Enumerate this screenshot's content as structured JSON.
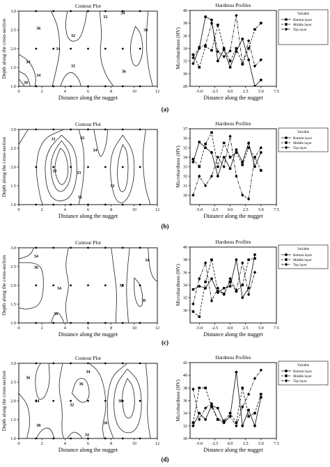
{
  "panel_labels": [
    "(a)",
    "(b)",
    "(c)",
    "(d)"
  ],
  "chart_data": [
    {
      "panel": "(a)",
      "type": "contour",
      "title": "Contour Plot",
      "xlabel": "Distance along the nugget",
      "ylabel": "Depth along the cross-section",
      "xlim": [
        0,
        12
      ],
      "ylim": [
        1.0,
        3.0
      ],
      "xticks": [
        0,
        2,
        4,
        6,
        8,
        10,
        12
      ],
      "yticks": [
        "1.0",
        "1.5",
        "2.0",
        "2.5",
        "3.0"
      ],
      "contour_labels": [
        "36",
        "32",
        "32",
        "36",
        "34",
        "34",
        "32",
        "30",
        "34",
        "36",
        "34"
      ],
      "measurement_points": {
        "x": [
          1.5,
          3.0,
          4.5,
          6.0,
          7.5,
          9.0,
          10.5
        ],
        "y": [
          1.0,
          2.0,
          3.0
        ]
      }
    },
    {
      "panel": "(a)",
      "type": "line",
      "title": "Hardness Profiles",
      "xlabel": "Distance along the nugget",
      "ylabel": "Microhardness (HV)",
      "xlim": [
        -6.5,
        7.5
      ],
      "ylim": [
        28,
        40
      ],
      "xticks": [
        "-5.0",
        "-2.5",
        "0.0",
        "2.5",
        "5.0",
        "7.5"
      ],
      "yticks": [
        28,
        30,
        32,
        34,
        36,
        38,
        40
      ],
      "legend_title": "Variable",
      "legend_position": "right",
      "x": [
        -6.0,
        -5.0,
        -4.0,
        -3.0,
        -2.0,
        -1.0,
        0.0,
        1.0,
        2.0,
        3.0,
        4.0,
        5.0,
        6.0
      ],
      "series": [
        {
          "name": "Bottom layer",
          "marker": "circle",
          "dash": "solid",
          "values": [
            31.6,
            34.0,
            39.0,
            38.5,
            32.0,
            33.8,
            31.0,
            33.5,
            35.5,
            32.2,
            28.0,
            29.0,
            null
          ]
        },
        {
          "name": "Middle layer",
          "marker": "square",
          "dash": "dashed",
          "values": [
            33.0,
            31.0,
            34.3,
            33.7,
            37.7,
            34.0,
            32.0,
            34.0,
            31.5,
            34.0,
            37.0,
            38.0,
            null
          ]
        },
        {
          "name": "Top layer",
          "marker": "diamond",
          "dash": "dashdot",
          "values": [
            32.5,
            34.2,
            34.5,
            38.0,
            33.5,
            32.7,
            33.6,
            39.2,
            31.5,
            35.2,
            31.2,
            32.2,
            null
          ]
        }
      ]
    },
    {
      "panel": "(b)",
      "type": "contour",
      "title": "Contour Plot",
      "xlabel": "Distance along the nugget",
      "ylabel": "Depth along the cross-section",
      "xlim": [
        0,
        12
      ],
      "ylim": [
        1.0,
        3.0
      ],
      "xticks": [
        0,
        2,
        4,
        6,
        8,
        10,
        12
      ],
      "yticks": [
        "1.0",
        "1.5",
        "2.0",
        "2.5",
        "3.0"
      ],
      "contour_labels": [
        "31",
        "32",
        "34",
        "33",
        "30",
        "33",
        "32"
      ],
      "measurement_points": {
        "x": [
          1.5,
          3.0,
          4.5,
          6.0,
          7.5,
          9.0,
          10.5
        ],
        "y": [
          1.0,
          2.0,
          3.0
        ]
      }
    },
    {
      "panel": "(b)",
      "type": "line",
      "title": "Hardness Profiles",
      "xlabel": "Distance along the nugget",
      "ylabel": "Microhardness (HV)",
      "xlim": [
        -6.5,
        7.5
      ],
      "ylim": [
        29,
        37
      ],
      "xticks": [
        "-5.0",
        "-2.5",
        "0.0",
        "2.5",
        "5.0",
        "7.5"
      ],
      "yticks": [
        30,
        31,
        32,
        33,
        34,
        35,
        36,
        37
      ],
      "legend_title": "Variable",
      "legend_position": "right",
      "x": [
        -6.0,
        -5.0,
        -4.0,
        -3.0,
        -2.0,
        -1.0,
        0.0,
        1.0,
        2.0,
        3.0,
        4.0,
        5.0,
        6.0
      ],
      "series": [
        {
          "name": "Bottom layer",
          "marker": "circle",
          "dash": "solid",
          "values": [
            33.5,
            35.6,
            35.0,
            34.5,
            32.0,
            34.0,
            32.8,
            34.8,
            33.5,
            35.5,
            33.0,
            34.5,
            null
          ]
        },
        {
          "name": "Middle layer",
          "marker": "square",
          "dash": "dashed",
          "values": [
            33.8,
            33.0,
            35.4,
            36.6,
            33.0,
            35.5,
            34.0,
            34.5,
            33.2,
            35.0,
            34.0,
            32.6,
            null
          ]
        },
        {
          "name": "Top layer",
          "marker": "diamond",
          "dash": "dashdot",
          "values": [
            30.0,
            32.0,
            31.0,
            32.0,
            34.0,
            33.0,
            36.2,
            32.0,
            30.0,
            29.6,
            34.0,
            35.0,
            null
          ]
        }
      ]
    },
    {
      "panel": "(c)",
      "type": "contour",
      "title": "Contour Plot",
      "xlabel": "Distance along the nugget",
      "ylabel": "Depth along the cross-section",
      "xlim": [
        0,
        12
      ],
      "ylim": [
        1.0,
        3.0
      ],
      "xticks": [
        0,
        2,
        4,
        6,
        8,
        10,
        12
      ],
      "yticks": [
        "1.0",
        "1.5",
        "2.0",
        "2.5",
        "3.0"
      ],
      "contour_labels": [
        "34",
        "36",
        "34",
        "36",
        "38",
        "30",
        "34"
      ],
      "measurement_points": {
        "x": [
          1.5,
          3.0,
          4.5,
          6.0,
          7.5,
          9.0,
          10.5
        ],
        "y": [
          1.0,
          2.0,
          3.0
        ]
      }
    },
    {
      "panel": "(c)",
      "type": "line",
      "title": "Hardness Profiles",
      "xlabel": "Distance along the nugget",
      "ylabel": "Microhardness (HV)",
      "xlim": [
        -6.5,
        7.5
      ],
      "ylim": [
        28,
        40
      ],
      "xticks": [
        "-5.0",
        "-2.5",
        "0.0",
        "2.5",
        "5.0",
        "7.5"
      ],
      "yticks": [
        30,
        32,
        34,
        36,
        38,
        40
      ],
      "legend_title": "Variable",
      "legend_position": "right",
      "x": [
        -6.0,
        -5.0,
        -4.0,
        -3.0,
        -2.0,
        -1.0,
        0.0,
        1.0,
        2.0,
        3.0,
        4.0,
        5.0,
        6.0
      ],
      "series": [
        {
          "name": "Bottom layer",
          "marker": "circle",
          "dash": "solid",
          "values": [
            33.3,
            33.8,
            33.5,
            35.0,
            32.8,
            33.5,
            33.8,
            38.0,
            32.0,
            33.5,
            38.8,
            null,
            null
          ]
        },
        {
          "name": "Middle layer",
          "marker": "square",
          "dash": "dashed",
          "values": [
            29.8,
            29.0,
            34.5,
            38.0,
            33.0,
            32.6,
            34.5,
            33.0,
            34.0,
            38.0,
            38.2,
            null,
            null
          ]
        },
        {
          "name": "Top layer",
          "marker": "diamond",
          "dash": "dashdot",
          "values": [
            31.0,
            35.0,
            37.5,
            31.5,
            33.5,
            32.5,
            35.0,
            33.2,
            37.5,
            32.5,
            36.0,
            null,
            null
          ]
        }
      ]
    },
    {
      "panel": "(d)",
      "type": "contour",
      "title": "Contour Plot",
      "xlabel": "Distance along the nugget",
      "ylabel": "Depth along the cross-section",
      "xlim": [
        0,
        12
      ],
      "ylim": [
        1.0,
        3.0
      ],
      "xticks": [
        0,
        2,
        4,
        6,
        8,
        10,
        12
      ],
      "yticks": [
        "1.0",
        "1.5",
        "2.0",
        "2.5",
        "3.0"
      ],
      "contour_labels": [
        "36",
        "34",
        "38",
        "36",
        "32",
        "34",
        "38",
        "36",
        "34"
      ],
      "measurement_points": {
        "x": [
          1.5,
          3.0,
          4.5,
          6.0,
          7.5,
          9.0,
          10.5
        ],
        "y": [
          1.0,
          2.0,
          3.0
        ]
      }
    },
    {
      "panel": "(d)",
      "type": "line",
      "title": "Hardness Profiles",
      "xlabel": "Distance along the nugget",
      "ylabel": "Microhardness (HV)",
      "xlim": [
        -6.5,
        7.5
      ],
      "ylim": [
        30,
        42
      ],
      "xticks": [
        "-5.0",
        "-2.5",
        "0.0",
        "2.5",
        "5.0",
        "7.5"
      ],
      "yticks": [
        30,
        32,
        34,
        36,
        38,
        40,
        42
      ],
      "legend_title": "Variable",
      "legend_position": "right",
      "x": [
        -6.0,
        -5.0,
        -4.0,
        -3.0,
        -2.0,
        -1.0,
        0.0,
        1.0,
        2.0,
        3.0,
        4.0,
        5.0,
        6.0
      ],
      "series": [
        {
          "name": "Bottom layer",
          "marker": "circle",
          "dash": "solid",
          "values": [
            32.0,
            34.0,
            33.0,
            35.2,
            34.8,
            32.5,
            33.5,
            40.5,
            32.0,
            34.5,
            32.0,
            36.5,
            null
          ]
        },
        {
          "name": "Middle layer",
          "marker": "square",
          "dash": "dashed",
          "values": [
            32.5,
            38.0,
            38.0,
            35.0,
            33.0,
            32.8,
            34.0,
            32.5,
            38.0,
            33.5,
            34.0,
            37.0,
            null
          ]
        },
        {
          "name": "Top layer",
          "marker": "diamond",
          "dash": "dashdot",
          "values": [
            37.8,
            33.0,
            34.8,
            35.5,
            33.0,
            32.5,
            33.5,
            32.0,
            35.0,
            37.0,
            39.5,
            40.8,
            null
          ]
        }
      ]
    }
  ]
}
